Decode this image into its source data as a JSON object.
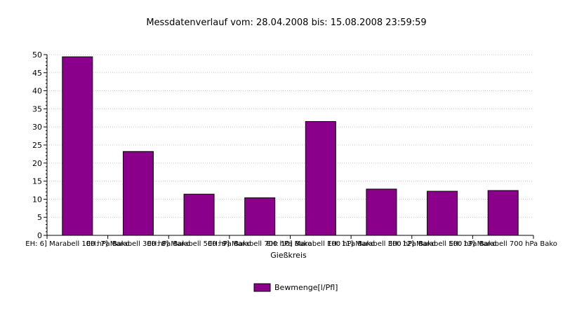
{
  "chart_data": {
    "type": "bar",
    "title": "Messdatenverlauf vom: 28.04.2008 bis: 15.08.2008 23:59:59",
    "xlabel": "Gießkreis",
    "ylabel": "",
    "ylim": [
      0,
      50
    ],
    "yticks": [
      0,
      5,
      10,
      15,
      20,
      25,
      30,
      35,
      40,
      45,
      50
    ],
    "categories": [
      "EH: 6] Marabell 100 hPa Bako",
      "EH: 7] Marabell 300 hPa Bako",
      "EH: 8] Marabell 500 hPa Bako",
      "EH: 9] Marabell 700 hPa Bako",
      "EH: 10] Marabell 100 hPa Bako",
      "EH: 11] Marabell 300 hPa Bako",
      "EH: 12] Marabell 500 hPa Bako",
      "EH: 13] Marabell 700 hPa Bako"
    ],
    "series": [
      {
        "name": "Bewmenge[l/Pfl]",
        "color": "#8b008b",
        "values": [
          49.4,
          23.2,
          11.4,
          10.4,
          31.5,
          12.8,
          12.2,
          12.4
        ]
      }
    ],
    "grid": true,
    "legend_position": "bottom-center"
  }
}
